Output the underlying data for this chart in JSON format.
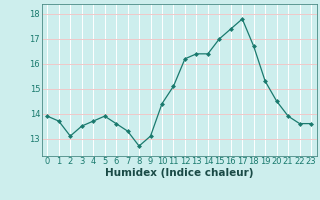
{
  "x": [
    0,
    1,
    2,
    3,
    4,
    5,
    6,
    7,
    8,
    9,
    10,
    11,
    12,
    13,
    14,
    15,
    16,
    17,
    18,
    19,
    20,
    21,
    22,
    23
  ],
  "y": [
    13.9,
    13.7,
    13.1,
    13.5,
    13.7,
    13.9,
    13.6,
    13.3,
    12.7,
    13.1,
    14.4,
    15.1,
    16.2,
    16.4,
    16.4,
    17.0,
    17.4,
    17.8,
    16.7,
    15.3,
    14.5,
    13.9,
    13.6,
    13.6
  ],
  "line_color": "#1a7a6e",
  "marker": "D",
  "marker_size": 2.0,
  "bg_color": "#cdeeed",
  "grid_color": "#f0c8c8",
  "xlabel": "Humidex (Indice chaleur)",
  "xlabel_fontsize": 7.5,
  "ylabel_ticks": [
    13,
    14,
    15,
    16,
    17,
    18
  ],
  "ylim": [
    12.3,
    18.4
  ],
  "xlim": [
    -0.5,
    23.5
  ],
  "tick_fontsize": 6.0
}
